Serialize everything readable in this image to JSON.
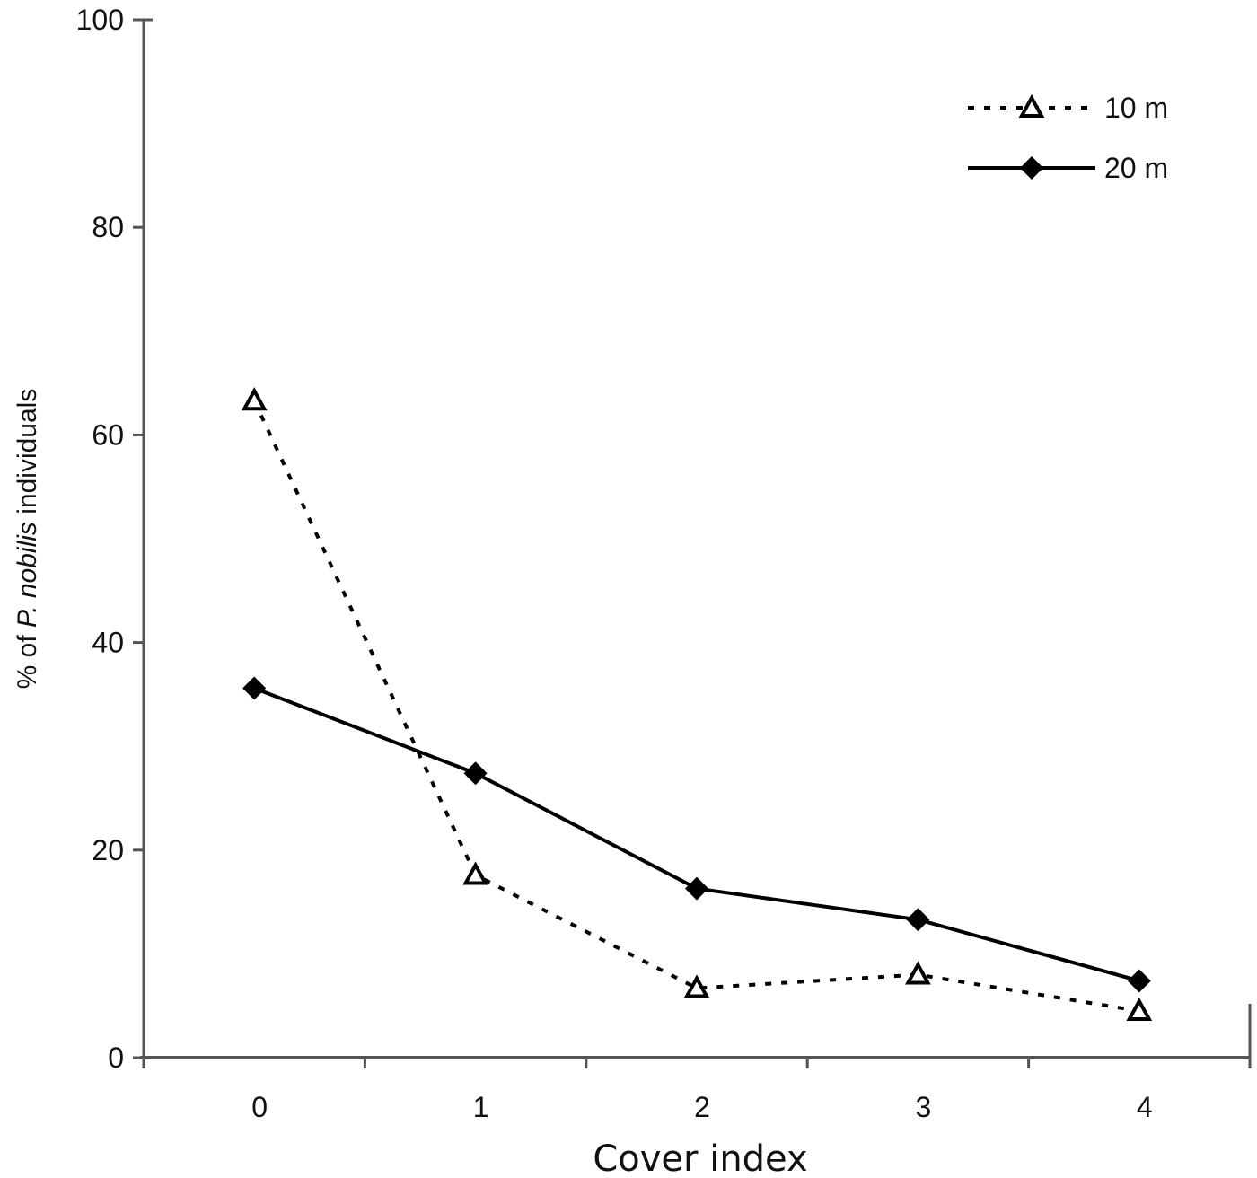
{
  "chart_data": {
    "type": "line",
    "title": "",
    "xlabel": "Cover index",
    "ylabel_parts": [
      "% of ",
      "P. nobilis",
      " individuals"
    ],
    "ylabel": "% of P. nobilis individuals",
    "categories": [
      "0",
      "1",
      "2",
      "3",
      "4"
    ],
    "x": [
      0,
      1,
      2,
      3,
      4
    ],
    "ylim": [
      0,
      100
    ],
    "yticks": [
      "0",
      "20",
      "40",
      "60",
      "80",
      "100"
    ],
    "grid": false,
    "legend_position": "upper right",
    "series": [
      {
        "name": "10 m",
        "style": "dotted",
        "marker": "open-triangle",
        "values": [
          63.3,
          17.6,
          6.7,
          8.0,
          4.5
        ]
      },
      {
        "name": "20 m",
        "style": "solid",
        "marker": "filled-diamond",
        "values": [
          35.6,
          27.4,
          16.3,
          13.3,
          7.4
        ]
      }
    ]
  },
  "legend": {
    "items": [
      {
        "label": "10 m"
      },
      {
        "label": "20 m"
      }
    ]
  },
  "axes": {
    "x_ticks": [
      "0",
      "1",
      "2",
      "3",
      "4"
    ],
    "y_ticks": [
      "0",
      "20",
      "40",
      "60",
      "80",
      "100"
    ],
    "x_title": "Cover index",
    "y_title_prefix": "% of ",
    "y_title_italic": "P. nobilis",
    "y_title_suffix": " individuals"
  },
  "colors": {
    "axis": "#555555",
    "line": "#000000",
    "text": "#111111"
  }
}
